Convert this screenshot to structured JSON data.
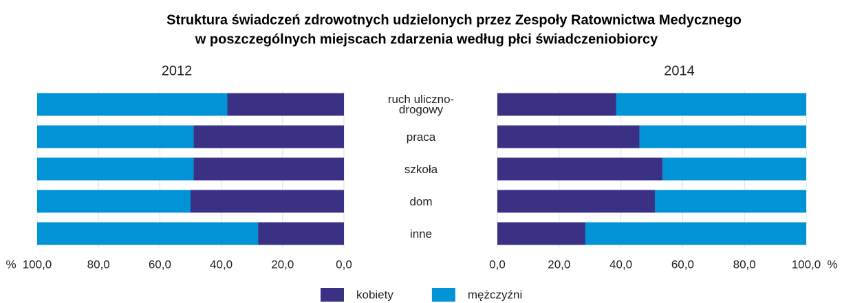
{
  "title": [
    "Struktura świadczeń zdrowotnych udzielonych przez Zespoły Ratownictwa Medycznego",
    "w poszczególnych miejscach zdarzenia według płci świadczeniobiorcy"
  ],
  "chart_data": [
    {
      "type": "bar",
      "orientation": "horizontal",
      "stacked": true,
      "x_reversed": true,
      "title": "2012",
      "x_unit": "%",
      "categories": [
        "ruch uliczno-drogowy",
        "praca",
        "szkoła",
        "dom",
        "inne"
      ],
      "series": [
        {
          "name": "kobiety",
          "color": "#3a3185",
          "values": [
            38,
            49,
            49,
            50,
            28
          ]
        },
        {
          "name": "mężczyźni",
          "color": "#0093d6",
          "values": [
            62,
            51,
            51,
            50,
            72
          ]
        }
      ],
      "xlim": [
        0,
        100
      ],
      "xticks": [
        {
          "value": 0,
          "label": "0,0"
        },
        {
          "value": 20,
          "label": "20,0"
        },
        {
          "value": 40,
          "label": "40,0"
        },
        {
          "value": 60,
          "label": "60,0"
        },
        {
          "value": 80,
          "label": "80,0"
        },
        {
          "value": 100,
          "label": "100,0"
        }
      ],
      "grid": true
    },
    {
      "type": "bar",
      "orientation": "horizontal",
      "stacked": true,
      "x_reversed": false,
      "title": "2014",
      "x_unit": "%",
      "series": [
        {
          "color": "#3a3185",
          "values": [
            38.5,
            46,
            53.5,
            51,
            28.5
          ]
        },
        {
          "color": "#0093d6",
          "values": [
            61.5,
            54,
            46.5,
            49,
            71.5
          ]
        }
      ],
      "xlim": [
        0,
        100
      ],
      "xticks": [
        {
          "value": 0,
          "label": "0,0"
        },
        {
          "value": 20,
          "label": "20,0"
        },
        {
          "value": 40,
          "label": "40,0"
        },
        {
          "value": 60,
          "label": "60,0"
        },
        {
          "value": 80,
          "label": "80,0"
        },
        {
          "value": 100,
          "label": "100,0"
        }
      ],
      "grid": true
    }
  ]
}
